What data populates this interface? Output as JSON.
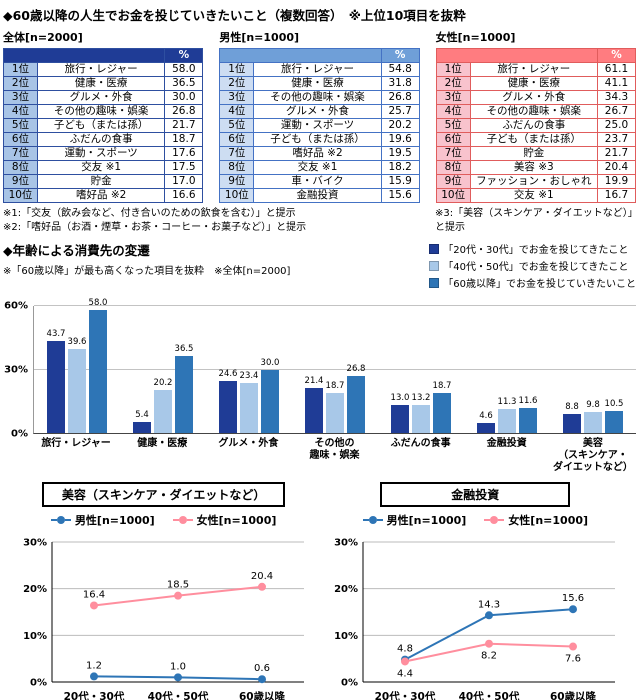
{
  "page": {
    "title": "◆60歳以降の人生でお金を投じていきたいこと（複数回答）　※上位10項目を抜粋"
  },
  "ranking_tables": [
    {
      "id": "overall",
      "title": "全体[n=2000]",
      "percent_header": "%",
      "colors": {
        "header_bg": "#1f3c96",
        "header_text": "#ffffff",
        "rank_bg": "#a8c4e6",
        "border": "#2e4fa0"
      },
      "rows": [
        {
          "rank": "1位",
          "item": "旅行・レジャー",
          "value": "58.0"
        },
        {
          "rank": "2位",
          "item": "健康・医療",
          "value": "36.5"
        },
        {
          "rank": "3位",
          "item": "グルメ・外食",
          "value": "30.0"
        },
        {
          "rank": "4位",
          "item": "その他の趣味・娯楽",
          "value": "26.8"
        },
        {
          "rank": "5位",
          "item": "子ども（または孫）",
          "value": "21.7"
        },
        {
          "rank": "6位",
          "item": "ふだんの食事",
          "value": "18.7"
        },
        {
          "rank": "7位",
          "item": "運動・スポーツ",
          "value": "17.6"
        },
        {
          "rank": "8位",
          "item": "交友 ※1",
          "value": "17.5"
        },
        {
          "rank": "9位",
          "item": "貯金",
          "value": "17.0"
        },
        {
          "rank": "10位",
          "item": "嗜好品 ※2",
          "value": "16.6"
        }
      ]
    },
    {
      "id": "male",
      "title": "男性[n=1000]",
      "percent_header": "%",
      "colors": {
        "header_bg": "#6f9fd8",
        "header_text": "#ffffff",
        "rank_bg": "#cdddf2",
        "border": "#4472c4"
      },
      "rows": [
        {
          "rank": "1位",
          "item": "旅行・レジャー",
          "value": "54.8"
        },
        {
          "rank": "2位",
          "item": "健康・医療",
          "value": "31.8"
        },
        {
          "rank": "3位",
          "item": "その他の趣味・娯楽",
          "value": "26.8"
        },
        {
          "rank": "4位",
          "item": "グルメ・外食",
          "value": "25.7"
        },
        {
          "rank": "5位",
          "item": "運動・スポーツ",
          "value": "20.2"
        },
        {
          "rank": "6位",
          "item": "子ども（または孫）",
          "value": "19.6"
        },
        {
          "rank": "7位",
          "item": "嗜好品 ※2",
          "value": "19.5"
        },
        {
          "rank": "8位",
          "item": "交友 ※1",
          "value": "18.2"
        },
        {
          "rank": "9位",
          "item": "車・バイク",
          "value": "15.9"
        },
        {
          "rank": "10位",
          "item": "金融投資",
          "value": "15.6"
        }
      ]
    },
    {
      "id": "female",
      "title": "女性[n=1000]",
      "percent_header": "%",
      "colors": {
        "header_bg": "#ff7c80",
        "header_text": "#ffffff",
        "rank_bg": "#f8c3cd",
        "border": "#e05c5c"
      },
      "rows": [
        {
          "rank": "1位",
          "item": "旅行・レジャー",
          "value": "61.1"
        },
        {
          "rank": "2位",
          "item": "健康・医療",
          "value": "41.1"
        },
        {
          "rank": "3位",
          "item": "グルメ・外食",
          "value": "34.3"
        },
        {
          "rank": "4位",
          "item": "その他の趣味・娯楽",
          "value": "26.7"
        },
        {
          "rank": "5位",
          "item": "ふだんの食事",
          "value": "25.0"
        },
        {
          "rank": "6位",
          "item": "子ども（または孫）",
          "value": "23.7"
        },
        {
          "rank": "7位",
          "item": "貯金",
          "value": "21.7"
        },
        {
          "rank": "8位",
          "item": "美容 ※3",
          "value": "20.4"
        },
        {
          "rank": "9位",
          "item": "ファッション・おしゃれ",
          "value": "19.9"
        },
        {
          "rank": "10位",
          "item": "交友 ※1",
          "value": "16.7"
        }
      ]
    }
  ],
  "footnotes": {
    "note1": "※1:「交友（飲み会など、付き合いのための飲食を含む）」と提示",
    "note2": "※2:「嗜好品（お酒・煙草・お茶・コーヒー・お菓子など）」と提示",
    "note3": "※3:「美容（スキンケア・ダイエットなど）」と提示"
  },
  "bar_section": {
    "title": "◆年齢による消費先の変遷",
    "subtitle": "※「60歳以降」が最も高くなった項目を抜粋　※全体[n=2000]"
  },
  "chart_data": [
    {
      "type": "bar",
      "title": "年齢による消費先の変遷",
      "categories": [
        "旅行・レジャー",
        "健康・医療",
        "グルメ・外食",
        "その他の\n趣味・娯楽",
        "ふだんの食事",
        "金融投資",
        "美容\n（スキンケア・\nダイエットなど）"
      ],
      "series": [
        {
          "name": "「20代・30代」でお金を投じてきたこと",
          "color": "#1f3c96",
          "values": [
            43.7,
            5.4,
            24.6,
            21.4,
            13.0,
            4.6,
            8.8
          ]
        },
        {
          "name": "「40代・50代」でお金を投じてきたこと",
          "color": "#a8c8e8",
          "values": [
            39.6,
            20.2,
            23.4,
            18.7,
            13.2,
            11.3,
            9.8
          ]
        },
        {
          "name": "「60歳以降」でお金を投じていきたいこと",
          "color": "#2e75b6",
          "values": [
            58.0,
            36.5,
            30.0,
            26.8,
            18.7,
            11.6,
            10.5
          ]
        }
      ],
      "ylim": [
        0,
        60
      ],
      "yticks": [
        "0%",
        "30%",
        "60%"
      ],
      "grid": true,
      "legend_position": "top-right"
    },
    {
      "type": "line",
      "title": "美容（スキンケア・ダイエットなど）",
      "categories": [
        "20代・30代",
        "40代・50代",
        "60歳以降"
      ],
      "series": [
        {
          "name": "男性[n=1000]",
          "color": "#2e75b6",
          "label_position": "above",
          "values": [
            1.2,
            1.0,
            0.6
          ]
        },
        {
          "name": "女性[n=1000]",
          "color": "#ff8e9e",
          "label_position": "above",
          "values": [
            16.4,
            18.5,
            20.4
          ]
        }
      ],
      "ylim": [
        0,
        30
      ],
      "yticks": [
        "0%",
        "10%",
        "20%",
        "30%"
      ],
      "grid": true,
      "legend_position": "top"
    },
    {
      "type": "line",
      "title": "金融投資",
      "categories": [
        "20代・30代",
        "40代・50代",
        "60歳以降"
      ],
      "series": [
        {
          "name": "男性[n=1000]",
          "color": "#2e75b6",
          "label_position": "above",
          "values": [
            4.8,
            14.3,
            15.6
          ]
        },
        {
          "name": "女性[n=1000]",
          "color": "#ff8e9e",
          "label_position": "below",
          "values": [
            4.4,
            8.2,
            7.6
          ]
        }
      ],
      "ylim": [
        0,
        30
      ],
      "yticks": [
        "0%",
        "10%",
        "20%",
        "30%"
      ],
      "grid": true,
      "legend_position": "top"
    }
  ]
}
